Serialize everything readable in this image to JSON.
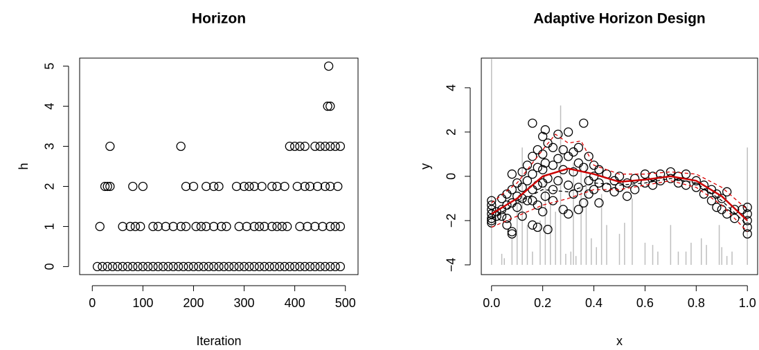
{
  "chart_data": [
    {
      "type": "scatter",
      "title": "Horizon",
      "x_label": "Iteration",
      "y_label": "h",
      "color": "#000000",
      "x": [
        10,
        20,
        30,
        40,
        50,
        60,
        70,
        80,
        90,
        100,
        110,
        120,
        130,
        140,
        150,
        160,
        170,
        180,
        190,
        200,
        210,
        220,
        230,
        240,
        250,
        260,
        270,
        280,
        290,
        300,
        310,
        320,
        330,
        340,
        350,
        360,
        370,
        380,
        390,
        400,
        410,
        420,
        430,
        440,
        450,
        460,
        470,
        480,
        490,
        15,
        60,
        75,
        85,
        95,
        120,
        130,
        145,
        160,
        175,
        185,
        205,
        215,
        225,
        240,
        255,
        265,
        290,
        305,
        320,
        330,
        340,
        355,
        365,
        375,
        385,
        410,
        425,
        440,
        455,
        470,
        480,
        490,
        25,
        30,
        35,
        80,
        100,
        185,
        200,
        225,
        240,
        250,
        285,
        300,
        310,
        320,
        335,
        355,
        365,
        380,
        405,
        420,
        430,
        445,
        460,
        470,
        485,
        35,
        175,
        390,
        400,
        410,
        420,
        440,
        450,
        460,
        470,
        480,
        490,
        465,
        470,
        467
      ],
      "values": [
        0,
        0,
        0,
        0,
        0,
        0,
        0,
        0,
        0,
        0,
        0,
        0,
        0,
        0,
        0,
        0,
        0,
        0,
        0,
        0,
        0,
        0,
        0,
        0,
        0,
        0,
        0,
        0,
        0,
        0,
        0,
        0,
        0,
        0,
        0,
        0,
        0,
        0,
        0,
        0,
        0,
        0,
        0,
        0,
        0,
        0,
        0,
        0,
        0,
        1,
        1,
        1,
        1,
        1,
        1,
        1,
        1,
        1,
        1,
        1,
        1,
        1,
        1,
        1,
        1,
        1,
        1,
        1,
        1,
        1,
        1,
        1,
        1,
        1,
        1,
        1,
        1,
        1,
        1,
        1,
        1,
        1,
        2,
        2,
        2,
        2,
        2,
        2,
        2,
        2,
        2,
        2,
        2,
        2,
        2,
        2,
        2,
        2,
        2,
        2,
        2,
        2,
        2,
        2,
        2,
        2,
        2,
        3,
        3,
        3,
        3,
        3,
        3,
        3,
        3,
        3,
        3,
        3,
        3,
        4,
        4,
        5
      ],
      "xlim": [
        -25,
        525
      ],
      "ylim": [
        -0.2,
        5.2
      ],
      "xticks": [
        0,
        100,
        200,
        300,
        400,
        500
      ],
      "yticks": [
        0,
        1,
        2,
        3,
        4,
        5
      ]
    },
    {
      "type": "scatter",
      "title": "Adaptive Horizon Design",
      "x_label": "x",
      "y_label": "y",
      "color": "#000000",
      "x": [
        0,
        0,
        0,
        0,
        0,
        0,
        0,
        0.02,
        0.02,
        0.04,
        0.04,
        0.04,
        0.06,
        0.06,
        0.06,
        0.06,
        0.08,
        0.08,
        0.08,
        0.08,
        0.08,
        0.1,
        0.1,
        0.1,
        0.12,
        0.12,
        0.12,
        0.12,
        0.14,
        0.14,
        0.14,
        0.16,
        0.16,
        0.16,
        0.16,
        0.16,
        0.16,
        0.18,
        0.18,
        0.18,
        0.18,
        0.18,
        0.2,
        0.2,
        0.2,
        0.2,
        0.2,
        0.21,
        0.21,
        0.21,
        0.22,
        0.22,
        0.22,
        0.24,
        0.24,
        0.24,
        0.24,
        0.26,
        0.26,
        0.26,
        0.28,
        0.28,
        0.28,
        0.3,
        0.3,
        0.3,
        0.3,
        0.32,
        0.32,
        0.32,
        0.34,
        0.34,
        0.34,
        0.34,
        0.36,
        0.36,
        0.36,
        0.38,
        0.38,
        0.38,
        0.4,
        0.4,
        0.4,
        0.42,
        0.42,
        0.42,
        0.45,
        0.45,
        0.48,
        0.48,
        0.5,
        0.5,
        0.53,
        0.53,
        0.56,
        0.56,
        0.6,
        0.6,
        0.63,
        0.63,
        0.66,
        0.66,
        0.7,
        0.7,
        0.73,
        0.73,
        0.76,
        0.76,
        0.8,
        0.8,
        0.83,
        0.83,
        0.86,
        0.86,
        0.88,
        0.88,
        0.9,
        0.9,
        0.92,
        0.92,
        0.95,
        0.95,
        0.98,
        1,
        1,
        1,
        1,
        1
      ],
      "values": [
        -1.1,
        -1.3,
        -1.5,
        -1.7,
        -1.9,
        -2.0,
        -2.1,
        -1.6,
        -1.8,
        -1.0,
        -1.5,
        -1.8,
        -1.3,
        -0.8,
        -1.9,
        -2.2,
        0.1,
        -0.6,
        -1.2,
        -2.5,
        -2.6,
        -0.3,
        -0.9,
        -1.4,
        -0.5,
        0.2,
        -1.0,
        -1.8,
        0.5,
        -0.2,
        -1.1,
        2.4,
        0.9,
        0.1,
        -0.6,
        -1.1,
        -2.2,
        1.2,
        0.4,
        -0.4,
        -1.3,
        -2.3,
        1.8,
        1.0,
        0.3,
        -0.3,
        -1.6,
        2.1,
        0.6,
        -0.9,
        1.5,
        -0.1,
        -2.4,
        1.3,
        0.5,
        -0.6,
        -1.1,
        1.9,
        0.8,
        -0.2,
        1.2,
        0.3,
        -1.5,
        2.0,
        0.9,
        -0.4,
        -1.7,
        1.1,
        0.2,
        -0.8,
        1.3,
        0.6,
        -0.5,
        -1.5,
        2.4,
        0.4,
        -1.2,
        0.9,
        -0.2,
        -0.8,
        0.5,
        0.0,
        -0.6,
        0.3,
        -0.3,
        -1.2,
        0.1,
        -0.5,
        -0.2,
        -0.7,
        0.0,
        -0.5,
        -0.3,
        -0.9,
        -0.1,
        -0.6,
        0.1,
        -0.3,
        0.0,
        -0.4,
        0.1,
        -0.2,
        0.2,
        -0.1,
        0.0,
        -0.3,
        0.1,
        -0.4,
        -0.2,
        -0.5,
        -0.4,
        -0.8,
        -0.6,
        -1.1,
        -0.8,
        -1.4,
        -1.0,
        -1.5,
        -0.7,
        -1.7,
        -1.5,
        -1.9,
        -1.5,
        -1.4,
        -1.7,
        -2.0,
        -2.3,
        -2.6
      ],
      "lines": [
        {
          "color": "#000000",
          "dashed": true,
          "x": [
            0,
            0.1,
            0.2,
            0.3,
            0.4,
            0.5,
            0.6,
            0.7,
            0.8,
            0.9,
            1
          ],
          "values": [
            -1.9,
            -1.2,
            -0.6,
            -0.7,
            -0.3,
            -0.4,
            -0.3,
            -0.1,
            -0.3,
            -1.1,
            -2.2
          ]
        },
        {
          "color": "#dd0000",
          "dashed": true,
          "x": [
            0,
            0.1,
            0.2,
            0.25,
            0.3,
            0.35,
            0.4,
            0.5,
            0.6,
            0.7,
            0.8,
            0.9,
            1
          ],
          "values": [
            -1.2,
            -0.3,
            1.2,
            1.9,
            1.5,
            1.6,
            0.5,
            0.1,
            0.1,
            0.2,
            0.1,
            -0.5,
            -1.5
          ]
        },
        {
          "color": "#dd0000",
          "dashed": true,
          "x": [
            0,
            0.1,
            0.2,
            0.3,
            0.4,
            0.5,
            0.6,
            0.7,
            0.8,
            0.9,
            1
          ],
          "values": [
            -2.3,
            -1.8,
            -1.3,
            -1.0,
            -0.6,
            -0.6,
            -0.4,
            -0.2,
            -0.5,
            -1.3,
            -2.5
          ]
        },
        {
          "color": "#cc0000",
          "dashed": false,
          "x": [
            0,
            0.1,
            0.2,
            0.3,
            0.4,
            0.5,
            0.6,
            0.7,
            0.8,
            0.9,
            1
          ],
          "values": [
            -1.7,
            -1.0,
            0.0,
            0.35,
            0.1,
            -0.25,
            -0.15,
            0.0,
            -0.2,
            -0.9,
            -2.0
          ]
        }
      ],
      "spikes": {
        "color": "#bebebe",
        "base": -4,
        "x": [
          0,
          0.04,
          0.05,
          0.08,
          0.1,
          0.12,
          0.14,
          0.16,
          0.19,
          0.21,
          0.23,
          0.25,
          0.27,
          0.29,
          0.31,
          0.32,
          0.33,
          0.35,
          0.37,
          0.39,
          0.41,
          0.43,
          0.45,
          0.5,
          0.52,
          0.55,
          0.6,
          0.63,
          0.65,
          0.7,
          0.73,
          0.76,
          0.78,
          0.82,
          0.84,
          0.89,
          0.9,
          0.92,
          0.94,
          1
        ],
        "values": [
          5.3,
          -3.5,
          -3.7,
          -2.8,
          -1,
          1.3,
          -2.2,
          -3.4,
          -2.0,
          -0.2,
          -1.2,
          -1.6,
          3.2,
          -3.5,
          -3.4,
          0.6,
          -3.6,
          0.5,
          0.6,
          -2.8,
          -3.2,
          -0.8,
          -2.2,
          -2.6,
          -2.1,
          -1.0,
          -3.0,
          -3.1,
          -3.4,
          -2.2,
          -3.4,
          -3.4,
          -3.0,
          -2.8,
          -3.1,
          -2.2,
          -3.2,
          -3.6,
          -3.4,
          1.3
        ]
      },
      "xlim": [
        -0.04,
        1.04
      ],
      "ylim": [
        -4.44,
        5.34
      ],
      "xticks": [
        {
          "value": 0,
          "label": "0.0"
        },
        0.2,
        0.4,
        0.6,
        0.8,
        {
          "value": 1,
          "label": "1.0"
        }
      ],
      "yticks": [
        {
          "value": -4,
          "label": "−4"
        },
        {
          "value": -2,
          "label": "−2"
        },
        0,
        2,
        4
      ]
    }
  ]
}
